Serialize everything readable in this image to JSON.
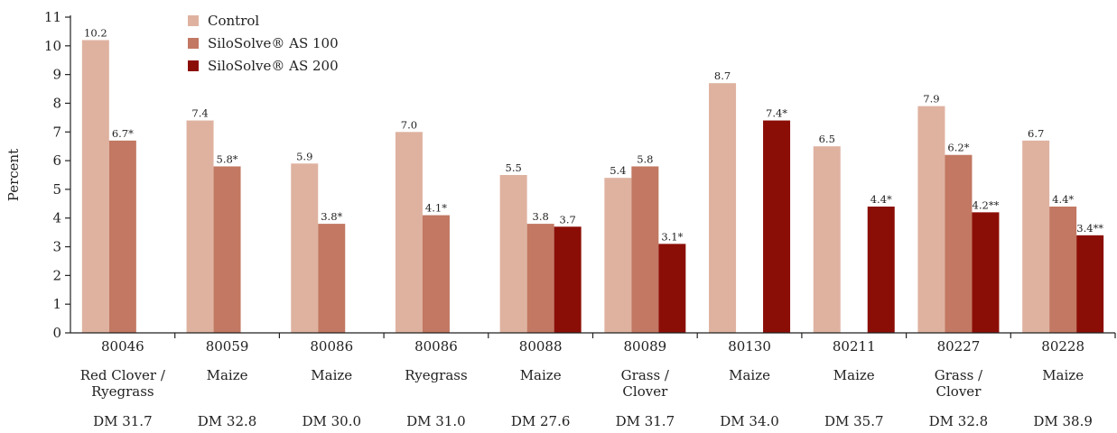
{
  "chart_data": {
    "type": "bar",
    "title": "",
    "xlabel": "",
    "ylabel": "Percent",
    "ylim": [
      0,
      11
    ],
    "yticks": [
      0,
      1,
      2,
      3,
      4,
      5,
      6,
      7,
      8,
      9,
      10,
      11
    ],
    "grid": false,
    "legend_position": "top-left",
    "categories": [
      {
        "code": "80046",
        "crop": [
          "Red Clover /",
          "Ryegrass"
        ],
        "dm": "DM 31.7"
      },
      {
        "code": "80059",
        "crop": [
          "Maize"
        ],
        "dm": "DM 32.8"
      },
      {
        "code": "80086",
        "crop": [
          "Maize"
        ],
        "dm": "DM 30.0"
      },
      {
        "code": "80086",
        "crop": [
          "Ryegrass"
        ],
        "dm": "DM 31.0"
      },
      {
        "code": "80088",
        "crop": [
          "Maize"
        ],
        "dm": "DM 27.6"
      },
      {
        "code": "80089",
        "crop": [
          "Grass /",
          "Clover"
        ],
        "dm": "DM 31.7"
      },
      {
        "code": "80130",
        "crop": [
          "Maize"
        ],
        "dm": "DM 34.0"
      },
      {
        "code": "80211",
        "crop": [
          "Maize"
        ],
        "dm": "DM 35.7"
      },
      {
        "code": "80227",
        "crop": [
          "Grass /",
          "Clover"
        ],
        "dm": "DM 32.8"
      },
      {
        "code": "80228",
        "crop": [
          "Maize"
        ],
        "dm": "DM 38.9"
      }
    ],
    "series": [
      {
        "name": "Control",
        "color": "#dfb2a0",
        "values": [
          10.2,
          7.4,
          5.9,
          7.0,
          5.5,
          5.4,
          8.7,
          6.5,
          7.9,
          6.7
        ],
        "labels": [
          "10.2",
          "7.4",
          "5.9",
          "7.0",
          "5.5",
          "5.4",
          "8.7",
          "6.5",
          "7.9",
          "6.7"
        ]
      },
      {
        "name": "SiloSolve® AS 100",
        "color": "#c27862",
        "values": [
          6.7,
          5.8,
          3.8,
          4.1,
          3.8,
          5.8,
          null,
          null,
          6.2,
          4.4
        ],
        "labels": [
          "6.7*",
          "5.8*",
          "3.8*",
          "4.1*",
          "3.8",
          "5.8",
          null,
          null,
          "6.2*",
          "4.4*"
        ]
      },
      {
        "name": "SiloSolve® AS 200",
        "color": "#8b0e06",
        "values": [
          null,
          null,
          null,
          null,
          3.7,
          3.1,
          7.4,
          4.4,
          4.2,
          3.4
        ],
        "labels": [
          null,
          null,
          null,
          null,
          "3.7",
          "3.1*",
          "7.4*",
          "4.4*",
          "4.2**",
          "3.4**"
        ]
      }
    ]
  }
}
